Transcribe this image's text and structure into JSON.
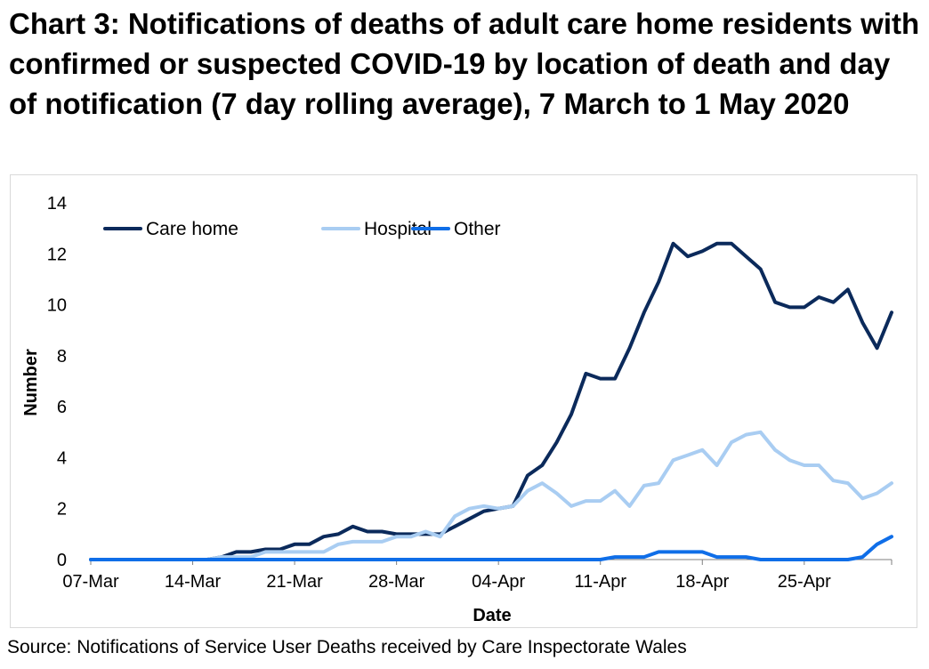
{
  "title": "Chart 3: Notifications of deaths of adult care home residents with confirmed or suspected COVID-19 by location of death and day of notification (7 day rolling average), 7 March to 1 May 2020",
  "source": "Source: Notifications of Service User Deaths received by Care Inspectorate Wales",
  "chart_data": {
    "type": "line",
    "xlabel": "Date",
    "ylabel": "Number",
    "ylim": [
      0,
      14
    ],
    "yticks": [
      0,
      2,
      4,
      6,
      8,
      10,
      12,
      14
    ],
    "x_tick_labels": [
      "07-Mar",
      "14-Mar",
      "21-Mar",
      "28-Mar",
      "04-Apr",
      "11-Apr",
      "18-Apr",
      "25-Apr"
    ],
    "x_tick_positions": [
      0,
      7,
      14,
      21,
      28,
      35,
      42,
      49
    ],
    "x_range": [
      0,
      55
    ],
    "grid": false,
    "legend_position": "top-left",
    "series": [
      {
        "name": "Care home",
        "color": "#0b2a5b",
        "values": [
          0,
          0,
          0,
          0,
          0,
          0,
          0,
          0,
          0,
          0.1,
          0.3,
          0.3,
          0.4,
          0.4,
          0.6,
          0.6,
          0.9,
          1.0,
          1.3,
          1.1,
          1.1,
          1.0,
          1.0,
          1.0,
          1.0,
          1.3,
          1.6,
          1.9,
          2.0,
          2.1,
          3.3,
          3.7,
          4.6,
          5.7,
          7.3,
          7.1,
          7.1,
          8.3,
          9.7,
          10.9,
          12.4,
          11.9,
          12.1,
          12.4,
          12.4,
          11.9,
          11.4,
          10.1,
          9.9,
          9.9,
          10.3,
          10.1,
          10.6,
          9.3,
          8.3,
          9.7
        ]
      },
      {
        "name": "Hospital",
        "color": "#a9cdf2",
        "values": [
          0,
          0,
          0,
          0,
          0,
          0,
          0,
          0,
          0,
          0.1,
          0.1,
          0.1,
          0.3,
          0.3,
          0.3,
          0.3,
          0.3,
          0.6,
          0.7,
          0.7,
          0.7,
          0.9,
          0.9,
          1.1,
          0.9,
          1.7,
          2.0,
          2.1,
          2.0,
          2.1,
          2.7,
          3.0,
          2.6,
          2.1,
          2.3,
          2.3,
          2.7,
          2.1,
          2.9,
          3.0,
          3.9,
          4.1,
          4.3,
          3.7,
          4.6,
          4.9,
          5.0,
          4.3,
          3.9,
          3.7,
          3.7,
          3.1,
          3.0,
          2.4,
          2.6,
          3.0
        ]
      },
      {
        "name": "Other",
        "color": "#0f6ee8",
        "values": [
          0,
          0,
          0,
          0,
          0,
          0,
          0,
          0,
          0,
          0,
          0,
          0,
          0,
          0,
          0,
          0,
          0,
          0,
          0,
          0,
          0,
          0,
          0,
          0,
          0,
          0,
          0,
          0,
          0,
          0,
          0,
          0,
          0,
          0,
          0,
          0,
          0.1,
          0.1,
          0.1,
          0.3,
          0.3,
          0.3,
          0.3,
          0.1,
          0.1,
          0.1,
          0,
          0,
          0,
          0,
          0,
          0,
          0,
          0.1,
          0.6,
          0.9
        ]
      }
    ]
  }
}
